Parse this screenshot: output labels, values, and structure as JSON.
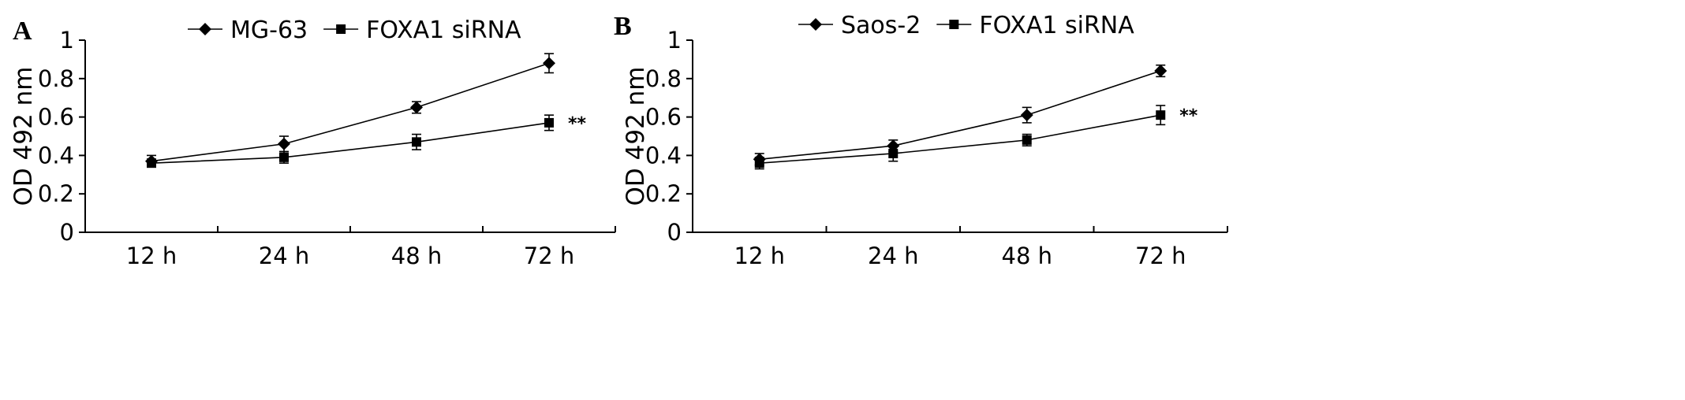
{
  "chart_data": [
    {
      "panel": "A",
      "type": "line",
      "categories": [
        "12 h",
        "24 h",
        "48 h",
        "72 h"
      ],
      "ylabel": "OD 492 nm",
      "xlabel": "",
      "ylim": [
        0,
        1
      ],
      "yticks": [
        "0",
        "0.2",
        "0.4",
        "0.6",
        "0.8",
        "1"
      ],
      "grid": false,
      "legend": "top",
      "series": [
        {
          "name": "MG-63",
          "marker": "diamond",
          "values": [
            0.37,
            0.46,
            0.65,
            0.88
          ],
          "errors": [
            0.03,
            0.04,
            0.03,
            0.05
          ]
        },
        {
          "name": "FOXA1 siRNA",
          "marker": "square",
          "values": [
            0.36,
            0.39,
            0.47,
            0.57
          ],
          "errors": [
            0.02,
            0.03,
            0.04,
            0.04
          ]
        }
      ],
      "annotation": "**"
    },
    {
      "panel": "B",
      "type": "line",
      "categories": [
        "12 h",
        "24 h",
        "48 h",
        "72 h"
      ],
      "ylabel": "OD 492 nm",
      "xlabel": "",
      "ylim": [
        0,
        1
      ],
      "yticks": [
        "0",
        "0.2",
        "0.4",
        "0.6",
        "0.8",
        "1"
      ],
      "grid": false,
      "legend": "top",
      "series": [
        {
          "name": "Saos-2",
          "marker": "diamond",
          "values": [
            0.38,
            0.45,
            0.61,
            0.84
          ],
          "errors": [
            0.03,
            0.03,
            0.04,
            0.03
          ]
        },
        {
          "name": "FOXA1 siRNA",
          "marker": "square",
          "values": [
            0.36,
            0.41,
            0.48,
            0.61
          ],
          "errors": [
            0.03,
            0.04,
            0.03,
            0.05
          ]
        }
      ],
      "annotation": "**"
    }
  ]
}
